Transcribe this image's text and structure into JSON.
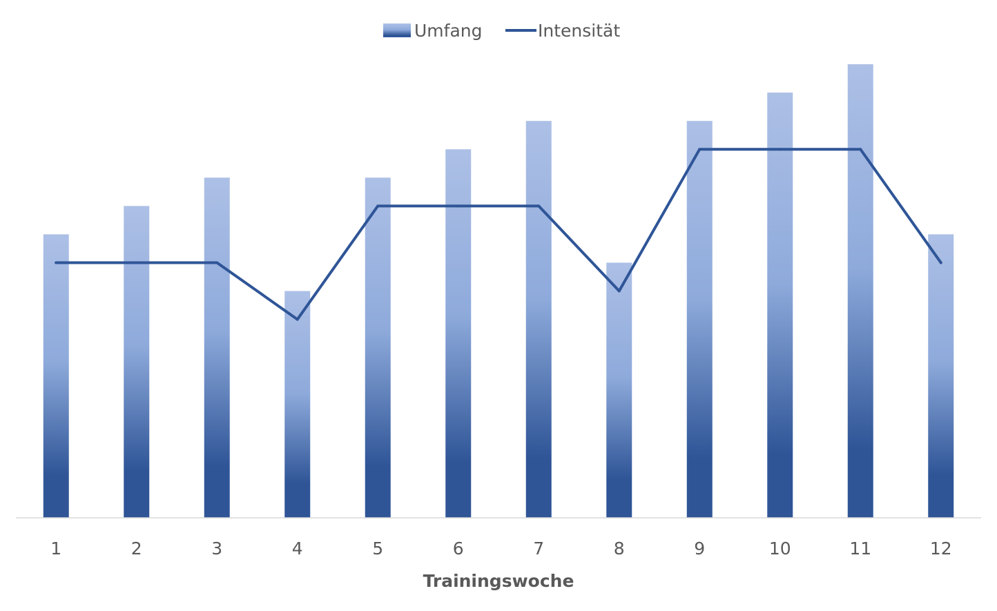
{
  "chart_data": {
    "type": "bar",
    "categories": [
      "1",
      "2",
      "3",
      "4",
      "5",
      "6",
      "7",
      "8",
      "9",
      "10",
      "11",
      "12"
    ],
    "series": [
      {
        "name": "Umfang",
        "type": "bar",
        "values": [
          10,
          11,
          12,
          8,
          12,
          13,
          14,
          9,
          14,
          15,
          16,
          10
        ],
        "color_top": "#adc0e6",
        "color_mid": "#8eaadb",
        "color_bottom": "#2f5597"
      },
      {
        "name": "Intensität",
        "type": "line",
        "values": [
          9,
          9,
          9,
          7,
          11,
          11,
          11,
          8,
          13,
          13,
          13,
          9
        ],
        "color": "#2f5597"
      }
    ],
    "xlabel": "Trainingswoche",
    "ylabel": "",
    "ylim": [
      0,
      16
    ],
    "y_axis_visible": false,
    "grid": false,
    "legend_position": "top"
  }
}
